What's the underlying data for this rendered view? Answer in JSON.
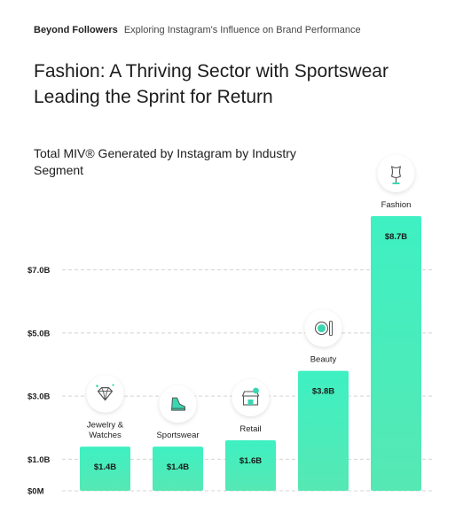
{
  "header": {
    "brand": "Beyond Followers",
    "tagline": "Exploring Instagram's Influence on Brand Performance"
  },
  "headline": "Fashion: A Thriving Sector with Sportswear Leading the Sprint for Return",
  "chart_data": {
    "type": "bar",
    "title": "Total MIV® Generated by Instagram by Industry Segment",
    "categories": [
      {
        "lines": [
          "Jewelry &",
          "Watches"
        ],
        "icon": "diamond-icon"
      },
      {
        "lines": [
          "Sportswear"
        ],
        "icon": "sneaker-icon"
      },
      {
        "lines": [
          "Retail"
        ],
        "icon": "storefront-icon"
      },
      {
        "lines": [
          "Beauty"
        ],
        "icon": "cosmetics-icon"
      },
      {
        "lines": [
          "Fashion"
        ],
        "icon": "dress-form-icon"
      }
    ],
    "values": [
      1.4,
      1.4,
      1.6,
      3.8,
      8.7
    ],
    "value_labels": [
      "$1.4B",
      "$1.4B",
      "$1.6B",
      "$3.8B",
      "$8.7B"
    ],
    "y_ticks": [
      0,
      1,
      3,
      5,
      7
    ],
    "y_tick_labels": [
      "$0M",
      "$1.0B",
      "$3.0B",
      "$5.0B",
      "$7.0B"
    ],
    "ylim": [
      0,
      8.7
    ],
    "grid": true,
    "colors": {
      "bar_top": "#3ef0c2",
      "bar_bottom": "#56e8b4",
      "icon_accent": "#3ad6b1",
      "grid": "#d4d4d4"
    }
  }
}
